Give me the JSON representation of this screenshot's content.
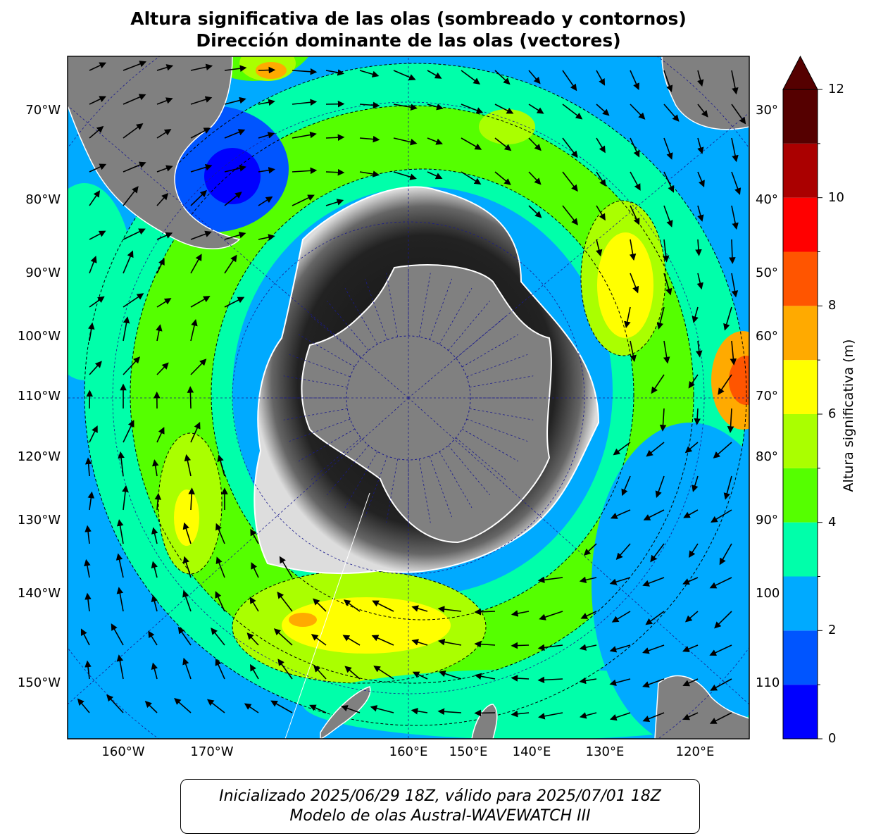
{
  "title": {
    "line1": "Altura significativa de las olas (sombreado y contornos)",
    "line2": "Dirección dominante de las olas (vectores)"
  },
  "map": {
    "projection": "south polar stereographic",
    "land_color": "#808080",
    "sea_ice_shading": "grayscale",
    "graticule_color": "#1a1a8c",
    "left_labels": [
      "70°W",
      "80°W",
      "90°W",
      "100°W",
      "110°W",
      "120°W",
      "130°W",
      "140°W",
      "150°W"
    ],
    "right_labels": [
      "30°",
      "40°",
      "50°",
      "60°",
      "70°",
      "80°",
      "90°",
      "100",
      "110"
    ],
    "bottom_labels": [
      "160°W",
      "170°W",
      "160°E",
      "150°E",
      "140°E",
      "130°E",
      "120°E"
    ]
  },
  "colorbar": {
    "label": "Altura significativa (m)",
    "ticks": [
      "0",
      "2",
      "4",
      "6",
      "8",
      "10",
      "12"
    ],
    "extend": "max",
    "levels": [
      0,
      1,
      2,
      3,
      4,
      5,
      6,
      7,
      8,
      9,
      10,
      11,
      12
    ],
    "colors": [
      "#0000ff",
      "#0055ff",
      "#00aaff",
      "#00ffaa",
      "#55ff00",
      "#aaff00",
      "#ffff00",
      "#ffaa00",
      "#ff5500",
      "#ff0000",
      "#aa0000",
      "#550000"
    ],
    "extend_color": "#550000"
  },
  "info": {
    "line1": "Inicializado 2025/06/29 18Z, válido para 2025/07/01 18Z",
    "line2": "Modelo de olas Austral-WAVEWATCH III"
  }
}
